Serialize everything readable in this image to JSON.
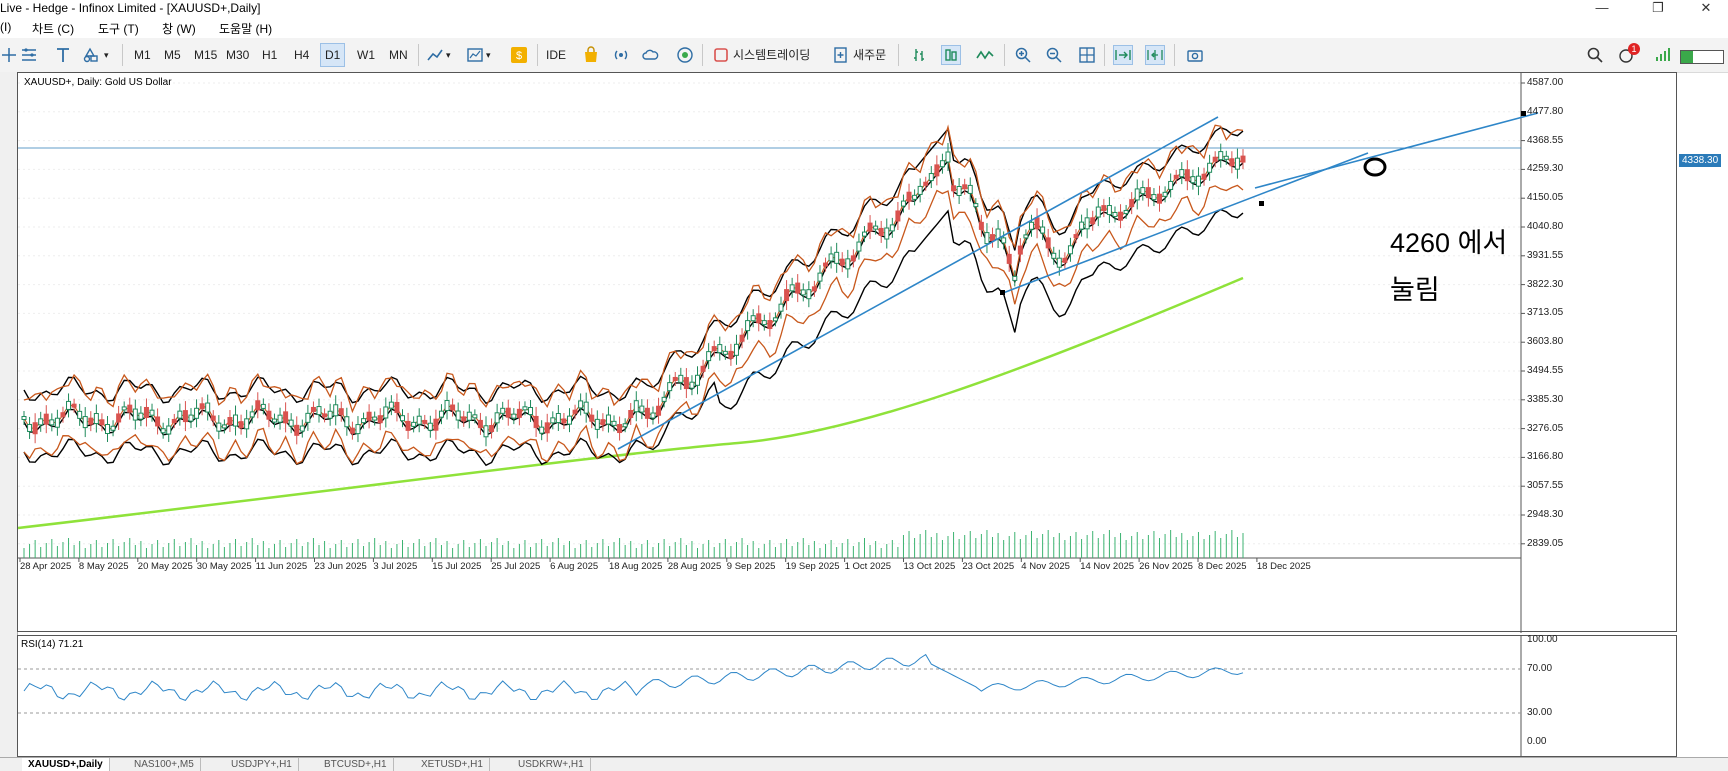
{
  "window": {
    "title": "Live - Hedge - Infinox Limited - [XAUUSD+,Daily]",
    "minimize": "—",
    "restore": "❐",
    "close": "✕"
  },
  "menu": [
    "(I)",
    "차트 (C)",
    "도구 (T)",
    "창 (W)",
    "도움말 (H)"
  ],
  "toolbar": {
    "timeframes": [
      "M1",
      "M5",
      "M15",
      "M30",
      "H1",
      "H4",
      "D1",
      "W1",
      "MN"
    ],
    "active_timeframe": "D1",
    "ide_label": "IDE",
    "algo_trading_label": "시스템트레이딩",
    "new_order_label": "새주문",
    "notification_count": "1",
    "icons": [
      "crosshair-icon",
      "indicators-icon",
      "text-icon",
      "objects-icon",
      "chart-type-icon",
      "template-icon",
      "market-icon",
      "shop-icon",
      "signals-icon",
      "cloud-icon",
      "vps-icon",
      "bar-chart-icon",
      "candles-icon",
      "line-chart-icon",
      "zoom-in-icon",
      "zoom-out-icon",
      "grid-icon",
      "autoscroll-icon",
      "chart-shift-icon",
      "screenshot-icon",
      "search-icon",
      "notification-icon",
      "signal-strength-icon"
    ]
  },
  "chart": {
    "legend": "XAUUSD+, Daily:  Gold US Dollar",
    "current_price": "4338.30",
    "annotation_line1": "4260 에서",
    "annotation_line2": "눌림",
    "price_axis": [
      "4587.00",
      "4477.80",
      "4368.55",
      "4259.30",
      "4150.05",
      "4040.80",
      "3931.55",
      "3822.30",
      "3713.05",
      "3603.80",
      "3494.55",
      "3385.30",
      "3276.05",
      "3166.80",
      "3057.55",
      "2948.30",
      "2839.05"
    ],
    "dates": [
      "28 Apr 2025",
      "8 May 2025",
      "20 May 2025",
      "30 May 2025",
      "11 Jun 2025",
      "23 Jun 2025",
      "3 Jul 2025",
      "15 Jul 2025",
      "25 Jul 2025",
      "6 Aug 2025",
      "18 Aug 2025",
      "28 Aug 2025",
      "9 Sep 2025",
      "19 Sep 2025",
      "1 Oct 2025",
      "13 Oct 2025",
      "23 Oct 2025",
      "4 Nov 2025",
      "14 Nov 2025",
      "26 Nov 2025",
      "8 Dec 2025",
      "18 Dec 2025"
    ],
    "colors": {
      "up": "#1f8a5b",
      "down": "#d9534f",
      "bands": "#c8581c",
      "envelope": "#000000",
      "ma": "#8fe23a",
      "trendline": "#2e86c8",
      "rsi": "#2e86c8"
    }
  },
  "rsi": {
    "legend": "RSI(14) 71.21",
    "levels": [
      "100.00",
      "70.00",
      "30.00",
      "0.00"
    ]
  },
  "tabs": [
    "XAUUSD+,Daily",
    "NAS100+,M5",
    "USDJPY+,H1",
    "BTCUSD+,H1",
    "XETUSD+,H1",
    "USDKRW+,H1"
  ],
  "active_tab": "XAUUSD+,Daily"
}
